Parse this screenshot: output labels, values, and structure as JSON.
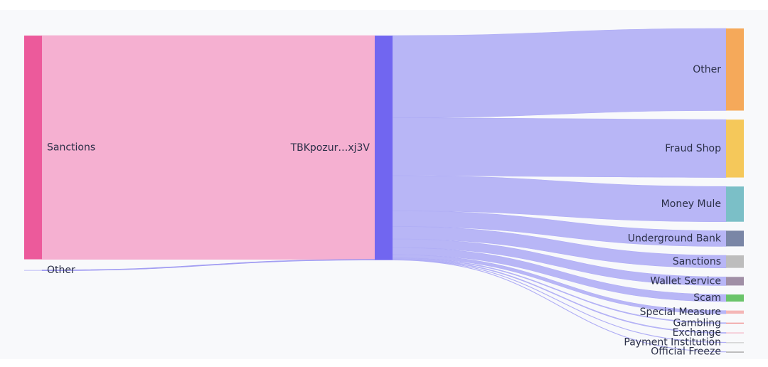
{
  "chart_data": {
    "type": "sankey",
    "nodes": [
      {
        "name": "Sanctions",
        "color": "#ec5a9b",
        "column": 0
      },
      {
        "name": "Other",
        "color": "#c9c7f7",
        "column": 0
      },
      {
        "name": "TBKpozur…xj3V",
        "color": "#7166f0",
        "column": 1
      },
      {
        "name": "Other",
        "color": "#f5a95a",
        "column": 2
      },
      {
        "name": "Fraud Shop",
        "color": "#f5c85a",
        "column": 2
      },
      {
        "name": "Money Mule",
        "color": "#7bbfc7",
        "column": 2
      },
      {
        "name": "Underground Bank",
        "color": "#7a86a6",
        "column": 2
      },
      {
        "name": "Sanctions",
        "color": "#bdbdbd",
        "column": 2
      },
      {
        "name": "Wallet Service",
        "color": "#a08fa6",
        "column": 2
      },
      {
        "name": "Scam",
        "color": "#6ac46a",
        "column": 2
      },
      {
        "name": "Special Measure",
        "color": "#f4b6b6",
        "column": 2
      },
      {
        "name": "Gambling",
        "color": "#f08a8a",
        "column": 2
      },
      {
        "name": "Exchange",
        "color": "#f4b6c6",
        "column": 2
      },
      {
        "name": "Payment Institution",
        "color": "#cccccc",
        "column": 2
      },
      {
        "name": "Official Freeze",
        "color": "#999999",
        "column": 2
      }
    ],
    "links": [
      {
        "source": 0,
        "target": 2,
        "value": 286,
        "color": "#f4a7cc"
      },
      {
        "source": 1,
        "target": 2,
        "value": 1,
        "color": "#9d98f2"
      },
      {
        "source": 2,
        "target": 3,
        "value": 105,
        "color": "#b0aef5"
      },
      {
        "source": 2,
        "target": 4,
        "value": 74,
        "color": "#b0aef5"
      },
      {
        "source": 2,
        "target": 5,
        "value": 45,
        "color": "#b0aef5"
      },
      {
        "source": 2,
        "target": 6,
        "value": 20,
        "color": "#b0aef5"
      },
      {
        "source": 2,
        "target": 7,
        "value": 16,
        "color": "#b0aef5"
      },
      {
        "source": 2,
        "target": 8,
        "value": 11,
        "color": "#b0aef5"
      },
      {
        "source": 2,
        "target": 9,
        "value": 9,
        "color": "#b0aef5"
      },
      {
        "source": 2,
        "target": 10,
        "value": 4,
        "color": "#b0aef5"
      },
      {
        "source": 2,
        "target": 11,
        "value": 1,
        "color": "#b0aef5"
      },
      {
        "source": 2,
        "target": 12,
        "value": 1,
        "color": "#b0aef5"
      },
      {
        "source": 2,
        "target": 13,
        "value": 0.5,
        "color": "#b0aef5"
      },
      {
        "source": 2,
        "target": 14,
        "value": 0.5,
        "color": "#b0aef5"
      }
    ]
  }
}
